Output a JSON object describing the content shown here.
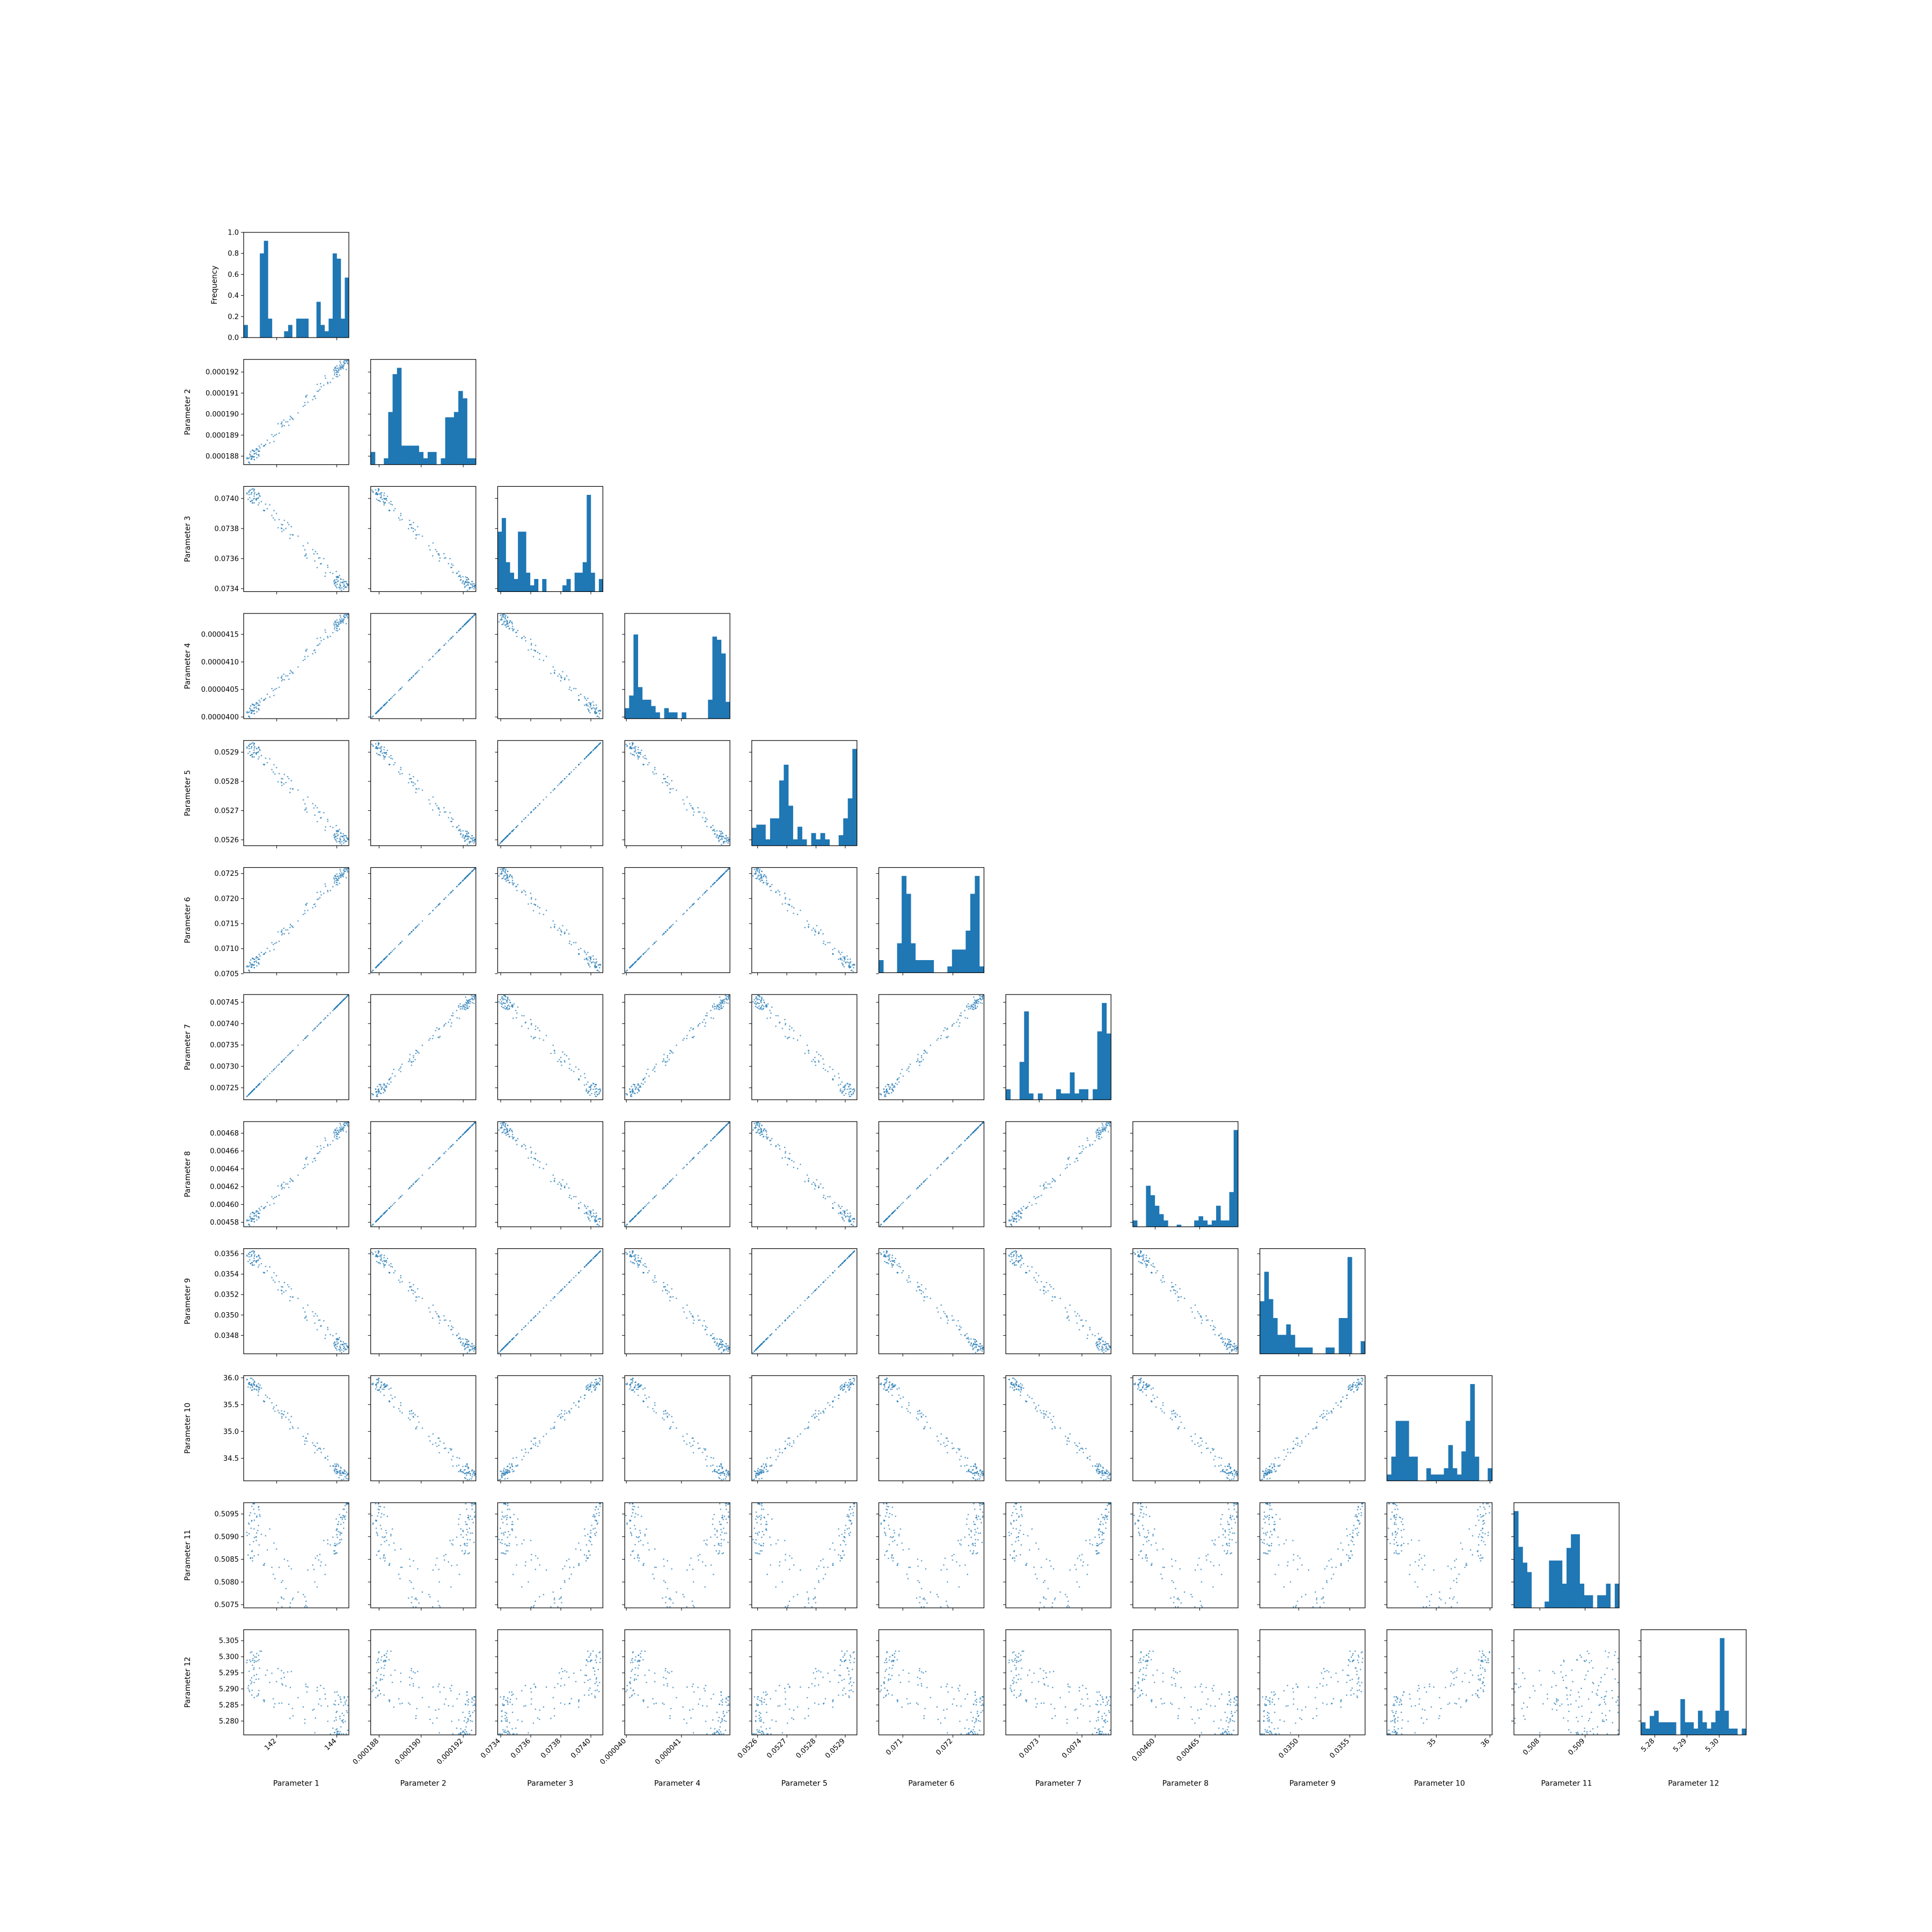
{
  "figure": {
    "type": "corner",
    "diagonal_ylabel": "Frequency",
    "diagonal_yticks": [
      "0.0",
      "0.2",
      "0.4",
      "0.6",
      "0.8",
      "1.0"
    ],
    "point_color": "#1f77b4",
    "bar_color": "#1f77b4"
  },
  "chart_data": {
    "type": "scatter",
    "parameters": [
      {
        "label": "Parameter 1",
        "range": [
          140.9,
          144.4
        ],
        "row_ticks": [],
        "col_ticks": [
          "142",
          "144"
        ],
        "hist": [
          0.12,
          0,
          0,
          0,
          0.8,
          0.92,
          0.18,
          0,
          0,
          0,
          0.06,
          0.12,
          0,
          0.18,
          0.18,
          0.18,
          0,
          0,
          0.34,
          0.12,
          0.06,
          0.18,
          0.8,
          0.75,
          0.18,
          0.57
        ]
      },
      {
        "label": "Parameter 2",
        "range": [
          0.0001876,
          0.0001926
        ],
        "row_ticks": [
          "0.000188",
          "0.000189",
          "0.000190",
          "0.000191",
          "0.000192"
        ],
        "col_ticks": [
          "0.000188",
          "0.000190",
          "0.000192"
        ],
        "hist": [
          0.12,
          0,
          0,
          0.06,
          0.5,
          0.86,
          0.92,
          0.18,
          0.18,
          0.18,
          0.18,
          0.12,
          0.06,
          0.12,
          0.12,
          0,
          0.06,
          0.45,
          0.45,
          0.5,
          0.7,
          0.63,
          0.06,
          0.06
        ]
      },
      {
        "label": "Parameter 3",
        "range": [
          0.07338,
          0.07408
        ],
        "row_ticks": [
          "0.0734",
          "0.0736",
          "0.0738",
          "0.0740"
        ],
        "col_ticks": [
          "0.0734",
          "0.0736",
          "0.0738",
          "0.0740"
        ],
        "hist": [
          0.57,
          0.7,
          0.28,
          0.18,
          0.12,
          0.57,
          0.57,
          0.18,
          0.06,
          0.12,
          0,
          0.12,
          0,
          0,
          0,
          0,
          0.06,
          0.12,
          0,
          0.18,
          0.18,
          0.28,
          0.92,
          0.18,
          0,
          0.12
        ]
      },
      {
        "label": "Parameter 4",
        "range": [
          3.997e-05,
          4.188e-05
        ],
        "row_ticks": [
          "0.0000400",
          "0.0000405",
          "0.0000410",
          "0.0000415"
        ],
        "col_ticks": [
          "0.000040",
          "0.000041"
        ],
        "hist": [
          0.1,
          0.22,
          0.8,
          0.3,
          0.18,
          0.18,
          0.12,
          0.06,
          0,
          0.1,
          0.06,
          0.06,
          0,
          0.06,
          0,
          0,
          0,
          0,
          0,
          0.18,
          0.78,
          0.75,
          0.62,
          0.16
        ]
      },
      {
        "label": "Parameter 5",
        "range": [
          0.05258,
          0.05294
        ],
        "row_ticks": [
          "0.0526",
          "0.0527",
          "0.0528",
          "0.0529"
        ],
        "col_ticks": [
          "0.0526",
          "0.0527",
          "0.0528",
          "0.0529"
        ],
        "hist": [
          0.17,
          0.2,
          0.2,
          0.06,
          0.26,
          0.26,
          0.62,
          0.77,
          0.38,
          0.06,
          0.18,
          0.06,
          0,
          0.12,
          0.06,
          0.12,
          0.06,
          0,
          0,
          0.1,
          0.26,
          0.45,
          0.92
        ]
      },
      {
        "label": "Parameter 6",
        "range": [
          0.07052,
          0.07262
        ],
        "row_ticks": [
          "0.0705",
          "0.0710",
          "0.0715",
          "0.0720",
          "0.0725"
        ],
        "col_ticks": [
          "0.071",
          "0.072"
        ],
        "hist": [
          0.12,
          0,
          0,
          0,
          0.28,
          0.92,
          0.75,
          0.28,
          0.12,
          0.12,
          0.12,
          0.12,
          0,
          0,
          0,
          0.06,
          0.22,
          0.22,
          0.22,
          0.4,
          0.75,
          0.92,
          0.06
        ]
      },
      {
        "label": "Parameter 7",
        "range": [
          0.007222,
          0.007468
        ],
        "row_ticks": [
          "0.00725",
          "0.00730",
          "0.00735",
          "0.00740",
          "0.00745"
        ],
        "col_ticks": [
          "0.0073",
          "0.0074"
        ],
        "hist": [
          0.1,
          0,
          0,
          0.36,
          0.84,
          0.06,
          0,
          0.06,
          0,
          0,
          0,
          0.1,
          0.06,
          0.06,
          0.26,
          0.06,
          0.1,
          0.1,
          0,
          0.1,
          0.65,
          0.92,
          0.63
        ]
      },
      {
        "label": "Parameter 8",
        "range": [
          0.004575,
          0.004693
        ],
        "row_ticks": [
          "0.00458",
          "0.00460",
          "0.00462",
          "0.00464",
          "0.00466",
          "0.00468"
        ],
        "col_ticks": [
          "0.00460",
          "0.00465"
        ],
        "hist": [
          0.06,
          0,
          0,
          0.39,
          0.3,
          0.2,
          0.12,
          0.06,
          0,
          0,
          0.02,
          0,
          0,
          0,
          0.06,
          0.1,
          0.06,
          0.02,
          0.06,
          0.2,
          0.06,
          0.06,
          0.33,
          0.92
        ]
      },
      {
        "label": "Parameter 9",
        "range": [
          0.03462,
          0.03565
        ],
        "row_ticks": [
          "0.0348",
          "0.0350",
          "0.0352",
          "0.0354",
          "0.0356"
        ],
        "col_ticks": [
          "0.0350",
          "0.0355"
        ],
        "hist": [
          0.5,
          0.78,
          0.52,
          0.34,
          0.18,
          0.18,
          0.28,
          0.18,
          0.06,
          0.06,
          0.06,
          0.06,
          0,
          0,
          0,
          0.06,
          0.06,
          0,
          0.34,
          0.34,
          0.92,
          0,
          0,
          0.12
        ]
      },
      {
        "label": "Parameter 10",
        "range": [
          34.08,
          36.04
        ],
        "row_ticks": [
          "34.5",
          "35.0",
          "35.5",
          "36.0"
        ],
        "col_ticks": [
          "35",
          "36"
        ],
        "hist": [
          0.06,
          0.23,
          0.57,
          0.57,
          0.57,
          0.23,
          0.23,
          0,
          0,
          0.12,
          0.06,
          0.06,
          0.06,
          0.12,
          0.34,
          0.12,
          0.06,
          0.28,
          0.57,
          0.92,
          0.23,
          0,
          0,
          0.12
        ]
      },
      {
        "label": "Parameter 11",
        "range": [
          0.50743,
          0.50975
        ],
        "row_ticks": [
          "0.5075",
          "0.5080",
          "0.5085",
          "0.5090",
          "0.5095"
        ],
        "col_ticks": [
          "0.508",
          "0.509"
        ],
        "hist": [
          0.92,
          0.58,
          0.43,
          0.34,
          0,
          0,
          0,
          0.06,
          0.45,
          0.45,
          0.45,
          0.23,
          0.57,
          0.7,
          0.7,
          0.23,
          0.12,
          0.12,
          0,
          0.12,
          0.12,
          0.23,
          0,
          0.23
        ]
      },
      {
        "label": "Parameter 12",
        "range": [
          5.2757,
          5.3084
        ],
        "row_ticks": [
          "5.280",
          "5.285",
          "5.290",
          "5.295",
          "5.300",
          "5.305"
        ],
        "col_ticks": [
          "5.28",
          "5.29",
          "5.30"
        ],
        "hist": [
          0.12,
          0.06,
          0.18,
          0.23,
          0.12,
          0.12,
          0.12,
          0.12,
          0,
          0.34,
          0.12,
          0.12,
          0.06,
          0.23,
          0.12,
          0.06,
          0.12,
          0.23,
          0.92,
          0.23,
          0.06,
          0.06,
          0,
          0.06
        ]
      }
    ]
  }
}
